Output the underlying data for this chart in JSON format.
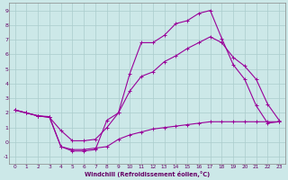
{
  "xlabel": "Windchill (Refroidissement éolien,°C)",
  "background_color": "#cce8e8",
  "grid_color": "#aacccc",
  "line_color": "#990099",
  "xlim": [
    -0.5,
    23.5
  ],
  "ylim": [
    -1.5,
    9.5
  ],
  "xticks": [
    0,
    1,
    2,
    3,
    4,
    5,
    6,
    7,
    8,
    9,
    10,
    11,
    12,
    13,
    14,
    15,
    16,
    17,
    18,
    19,
    20,
    21,
    22,
    23
  ],
  "yticks": [
    -1,
    0,
    1,
    2,
    3,
    4,
    5,
    6,
    7,
    8,
    9
  ],
  "series1_x": [
    0,
    1,
    2,
    3,
    4,
    5,
    6,
    7,
    8,
    9,
    10,
    11,
    12,
    13,
    14,
    15,
    16,
    17,
    18,
    19,
    20,
    21,
    22,
    23
  ],
  "series1_y": [
    2.2,
    2.0,
    1.8,
    1.75,
    -0.3,
    -0.5,
    -0.5,
    -0.4,
    -0.3,
    0.2,
    0.5,
    0.7,
    0.9,
    1.0,
    1.1,
    1.2,
    1.3,
    1.4,
    1.4,
    1.4,
    1.4,
    1.4,
    1.4,
    1.4
  ],
  "series2_x": [
    0,
    1,
    2,
    3,
    4,
    5,
    6,
    7,
    8,
    9,
    10,
    11,
    12,
    13,
    14,
    15,
    16,
    17,
    18,
    19,
    20,
    21,
    22,
    23
  ],
  "series2_y": [
    2.2,
    2.0,
    1.8,
    1.7,
    -0.3,
    -0.6,
    -0.6,
    -0.5,
    1.5,
    2.0,
    4.7,
    6.8,
    6.8,
    7.3,
    8.1,
    8.3,
    8.8,
    9.0,
    7.1,
    5.3,
    4.3,
    2.5,
    1.3,
    1.4
  ],
  "series3_x": [
    0,
    1,
    2,
    3,
    4,
    5,
    6,
    7,
    8,
    9,
    10,
    11,
    12,
    13,
    14,
    15,
    16,
    17,
    18,
    19,
    20,
    21,
    22,
    23
  ],
  "series3_y": [
    2.2,
    2.0,
    1.8,
    1.7,
    0.8,
    0.1,
    0.1,
    0.2,
    1.0,
    2.0,
    3.5,
    4.5,
    4.8,
    5.5,
    5.9,
    6.4,
    6.8,
    7.2,
    6.8,
    5.8,
    5.2,
    4.3,
    2.6,
    1.5
  ]
}
